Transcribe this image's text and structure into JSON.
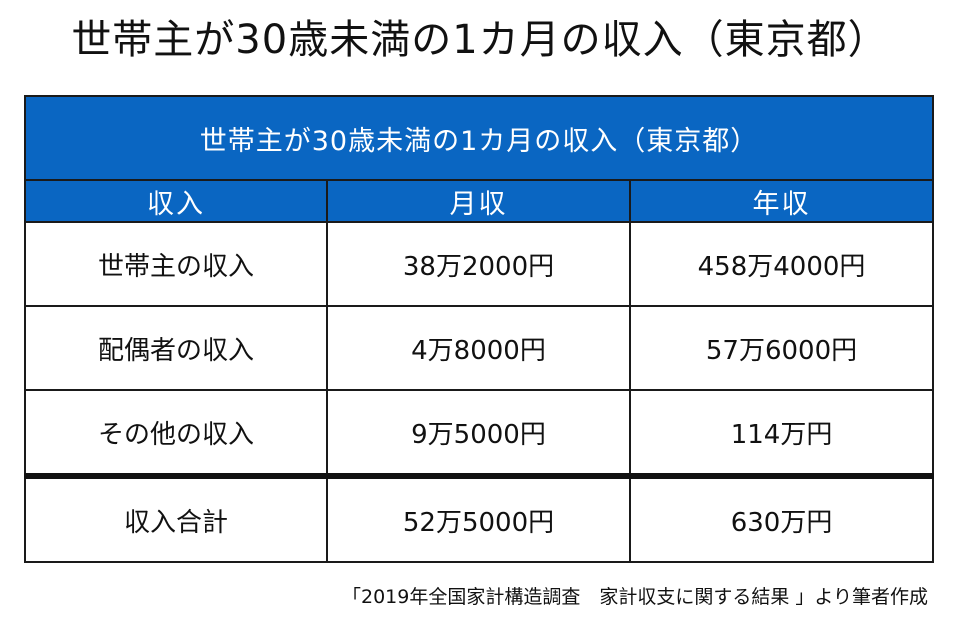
{
  "title": "世帯主が30歳未満の1カ月の収入（東京都）",
  "table": {
    "caption": "世帯主が30歳未満の1カ月の収入（東京都）",
    "columns": [
      "収入",
      "月収",
      "年収"
    ],
    "rows": [
      {
        "label": "世帯主の収入",
        "monthly": "38万2000円",
        "annual": "458万4000円"
      },
      {
        "label": "配偶者の収入",
        "monthly": "4万8000円",
        "annual": "57万6000円"
      },
      {
        "label": "その他の収入",
        "monthly": "9万5000円",
        "annual": "114万円"
      }
    ],
    "total": {
      "label": "収入合計",
      "monthly": "52万5000円",
      "annual": "630万円"
    }
  },
  "source": "「2019年全国家計構造調査　家計収支に関する結果 」より筆者作成",
  "colors": {
    "header_background": "#0a66c2",
    "header_text": "#ffffff",
    "border": "#1a1a1a"
  }
}
